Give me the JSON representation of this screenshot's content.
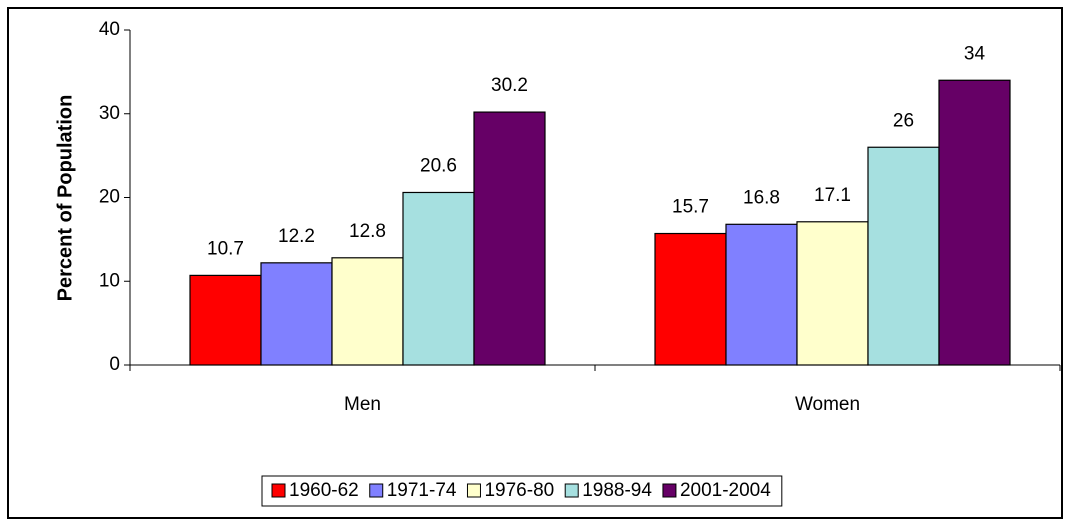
{
  "chart_data": {
    "type": "bar",
    "y_label": "Percent of Population",
    "categories": [
      "Men",
      "Women"
    ],
    "series": [
      {
        "name": "1960-62",
        "color": "#ff0000",
        "values": [
          10.7,
          15.7
        ]
      },
      {
        "name": "1971-74",
        "color": "#8080ff",
        "values": [
          12.2,
          16.8
        ]
      },
      {
        "name": "1976-80",
        "color": "#ffffcc",
        "values": [
          12.8,
          17.1
        ]
      },
      {
        "name": "1988-94",
        "color": "#a6e0e0",
        "values": [
          20.6,
          26
        ]
      },
      {
        "name": "2001-2004",
        "color": "#660066",
        "values": [
          30.2,
          34
        ]
      }
    ],
    "ylim": [
      0,
      40
    ],
    "yticks": [
      0,
      10,
      20,
      30,
      40
    ],
    "grid": false,
    "legend": "bottom"
  }
}
